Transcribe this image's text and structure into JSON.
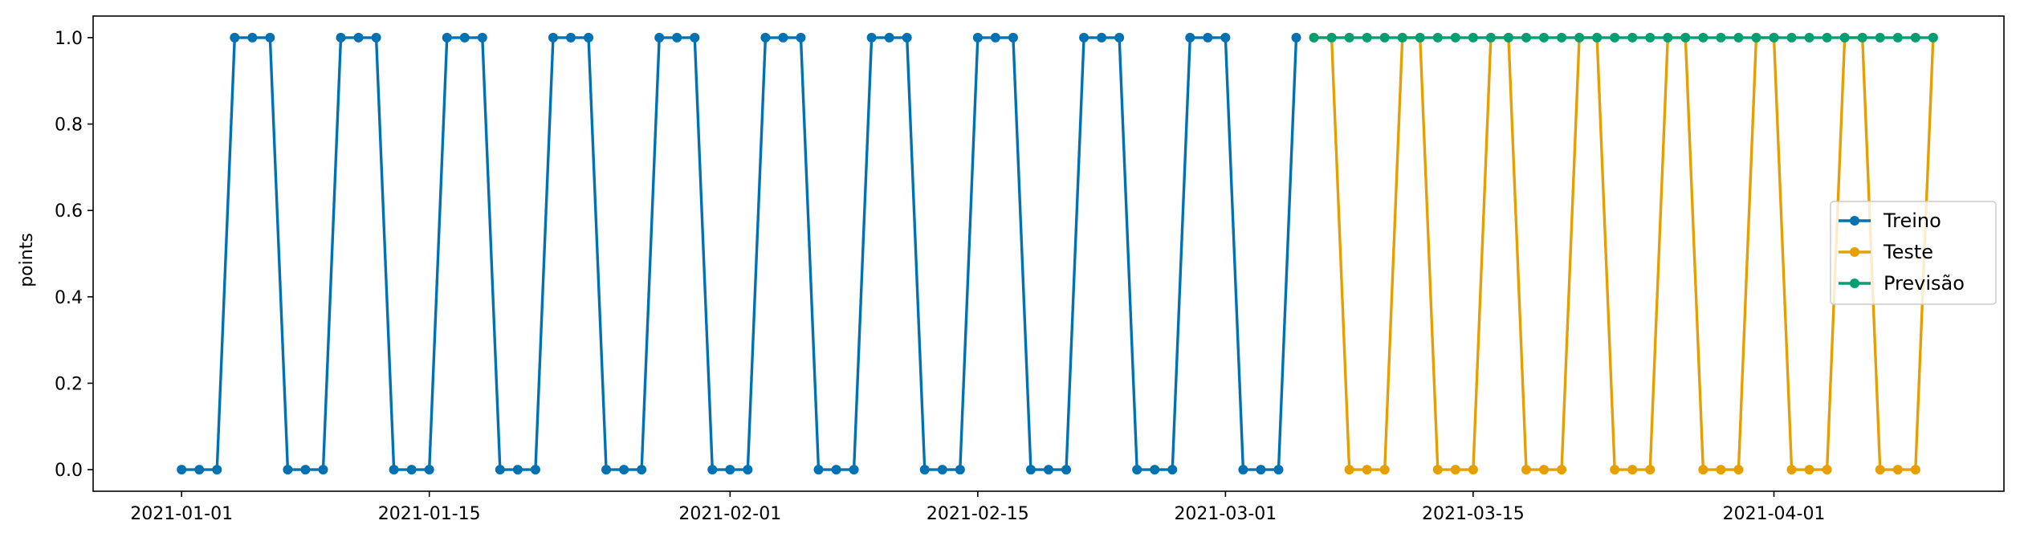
{
  "chart_data": {
    "type": "line",
    "title": "",
    "xlabel": "",
    "ylabel": "points",
    "x_type": "date",
    "xlim": [
      "2020-12-27",
      "2021-04-14"
    ],
    "ylim": [
      -0.05,
      1.05
    ],
    "x_ticks": [
      "2021-01-01",
      "2021-01-15",
      "2021-02-01",
      "2021-02-15",
      "2021-03-01",
      "2021-03-15",
      "2021-04-01"
    ],
    "y_ticks": [
      0.0,
      0.2,
      0.4,
      0.6,
      0.8,
      1.0
    ],
    "y_tick_labels": [
      "0.0",
      "0.2",
      "0.4",
      "0.6",
      "0.8",
      "1.0"
    ],
    "grid": false,
    "legend_position": "center-right",
    "series": [
      {
        "name": "Treino",
        "color": "#0072b2",
        "marker": "circle",
        "start": "2021-01-01",
        "values": [
          0,
          0,
          0,
          1,
          1,
          1,
          0,
          0,
          0,
          1,
          1,
          1,
          0,
          0,
          0,
          1,
          1,
          1,
          0,
          0,
          0,
          1,
          1,
          1,
          0,
          0,
          0,
          1,
          1,
          1,
          0,
          0,
          0,
          1,
          1,
          1,
          0,
          0,
          0,
          1,
          1,
          1,
          0,
          0,
          0,
          1,
          1,
          1,
          0,
          0,
          0,
          1,
          1,
          1,
          0,
          0,
          0,
          1,
          1,
          1,
          0,
          0,
          0,
          1
        ]
      },
      {
        "name": "Teste",
        "color": "#e69f00",
        "marker": "circle",
        "start": "2021-03-06",
        "values": [
          1,
          1,
          0,
          0,
          0,
          1,
          1,
          0,
          0,
          0,
          1,
          1,
          0,
          0,
          0,
          1,
          1,
          0,
          0,
          0,
          1,
          1,
          0,
          0,
          0,
          1,
          1,
          0,
          0,
          0,
          1,
          1,
          0,
          0,
          0,
          1
        ]
      },
      {
        "name": "Previsão",
        "color": "#009e73",
        "marker": "circle",
        "start": "2021-03-06",
        "values": [
          1,
          1,
          1,
          1,
          1,
          1,
          1,
          1,
          1,
          1,
          1,
          1,
          1,
          1,
          1,
          1,
          1,
          1,
          1,
          1,
          1,
          1,
          1,
          1,
          1,
          1,
          1,
          1,
          1,
          1,
          1,
          1,
          1,
          1,
          1,
          1
        ]
      }
    ]
  }
}
